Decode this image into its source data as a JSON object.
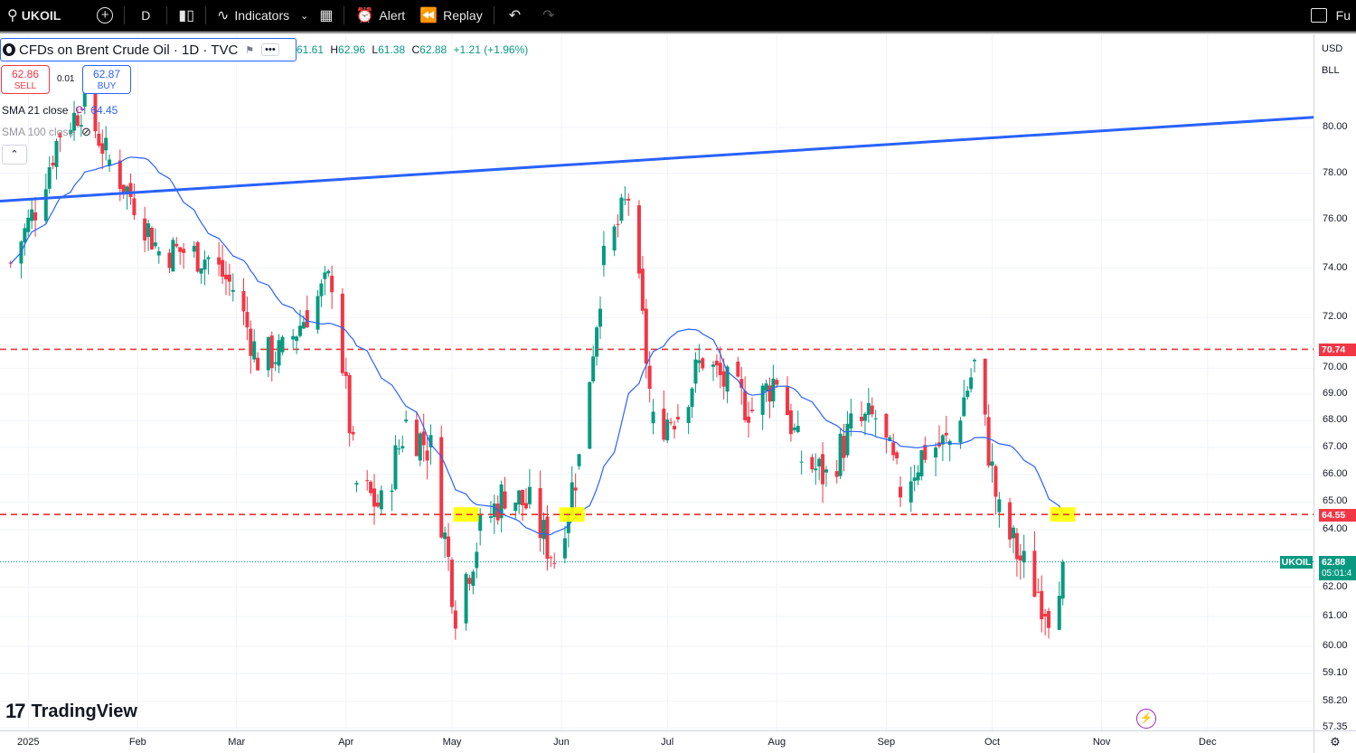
{
  "toolbar": {
    "symbol": "UKOIL",
    "interval": "D",
    "indicators_label": "Indicators",
    "alert_label": "Alert",
    "replay_label": "Replay",
    "right_cut_label": "Fu"
  },
  "legend": {
    "title": "CFDs on Brent Crude Oil · 1D · TVC",
    "ohlc_tail": {
      "open": "61.61",
      "high_label": "H",
      "high": "62.96",
      "low_label": "L",
      "low": "61.38",
      "close_label": "C",
      "close": "62.88",
      "change": "+1.21 (+1.96%)"
    },
    "sell_price": "62.86",
    "sell_label": "SELL",
    "buy_price": "62.87",
    "buy_label": "BUY",
    "spread": "0.01",
    "sma21_label": "SMA 21 close",
    "sma21_value": "64.45",
    "sma100_label": "SMA 100 close"
  },
  "price_scale": {
    "currency": "USD",
    "unit": "BLL",
    "ticks": [
      "80.00",
      "78.00",
      "76.00",
      "74.00",
      "72.00",
      "70.00",
      "69.00",
      "68.00",
      "67.00",
      "66.00",
      "65.00",
      "64.00",
      "62.00",
      "61.00",
      "60.00",
      "59.10",
      "58.20",
      "57.35"
    ],
    "tag_upper_level": "70.74",
    "tag_lower_level": "64.55",
    "tag_last_symbol": "UKOIL",
    "tag_last_price": "62.88",
    "tag_countdown": "05:01:4"
  },
  "time_scale": {
    "labels": [
      "2025",
      "Feb",
      "Mar",
      "Apr",
      "May",
      "Jun",
      "Jul",
      "Aug",
      "Sep",
      "Oct",
      "Nov",
      "Dec"
    ]
  },
  "watermark": {
    "text": "TradingView"
  },
  "colors": {
    "up": "#089981",
    "down": "#f23645",
    "trendline": "#2962ff",
    "sma": "#2962ff",
    "level_line": "#e53935",
    "highlight": "#ffff00"
  },
  "chart_data": {
    "type": "candlestick",
    "symbol": "UKOIL",
    "interval": "1D",
    "x_range": [
      "2024-12-24",
      "2025-12-31"
    ],
    "y_range": [
      57.35,
      80.5
    ],
    "y_scale": "log",
    "horizontal_levels": [
      70.74,
      64.55
    ],
    "trendline": {
      "from": [
        "2024-12-24",
        76.8
      ],
      "to": [
        "2025-12-31",
        80.45
      ]
    },
    "highlight_boxes": [
      {
        "date": "2025-05-05",
        "price": 64.55
      },
      {
        "date": "2025-06-04",
        "price": 64.55
      },
      {
        "date": "2025-10-21",
        "price": 64.55
      }
    ],
    "sma21_last": 64.45,
    "last_close": 62.88,
    "closes_weekly": [
      [
        "2024-12-27",
        74.2
      ],
      [
        "2025-01-03",
        76.5
      ],
      [
        "2025-01-10",
        79.8
      ],
      [
        "2025-01-17",
        81.0
      ],
      [
        "2025-01-24",
        78.5
      ],
      [
        "2025-01-31",
        76.8
      ],
      [
        "2025-02-07",
        74.7
      ],
      [
        "2025-02-14",
        74.7
      ],
      [
        "2025-02-21",
        74.4
      ],
      [
        "2025-02-28",
        73.2
      ],
      [
        "2025-03-07",
        70.4
      ],
      [
        "2025-03-14",
        70.6
      ],
      [
        "2025-03-21",
        72.2
      ],
      [
        "2025-03-28",
        73.6
      ],
      [
        "2025-04-04",
        65.6
      ],
      [
        "2025-04-11",
        64.8
      ],
      [
        "2025-04-18",
        67.9
      ],
      [
        "2025-04-25",
        66.9
      ],
      [
        "2025-05-02",
        61.3
      ],
      [
        "2025-05-09",
        63.9
      ],
      [
        "2025-05-16",
        65.4
      ],
      [
        "2025-05-23",
        64.8
      ],
      [
        "2025-05-30",
        63.0
      ],
      [
        "2025-06-06",
        66.5
      ],
      [
        "2025-06-13",
        74.2
      ],
      [
        "2025-06-20",
        77.0
      ],
      [
        "2025-06-27",
        67.8
      ],
      [
        "2025-07-04",
        68.3
      ],
      [
        "2025-07-11",
        70.4
      ],
      [
        "2025-07-18",
        69.3
      ],
      [
        "2025-07-25",
        68.4
      ],
      [
        "2025-08-01",
        69.7
      ],
      [
        "2025-08-08",
        66.6
      ],
      [
        "2025-08-15",
        65.9
      ],
      [
        "2025-08-22",
        67.7
      ],
      [
        "2025-08-29",
        68.1
      ],
      [
        "2025-09-05",
        65.5
      ],
      [
        "2025-09-12",
        66.9
      ],
      [
        "2025-09-19",
        67.2
      ],
      [
        "2025-09-26",
        70.1
      ],
      [
        "2025-10-03",
        64.5
      ],
      [
        "2025-10-10",
        62.7
      ],
      [
        "2025-10-17",
        61.3
      ],
      [
        "2025-10-21",
        62.88
      ]
    ]
  }
}
